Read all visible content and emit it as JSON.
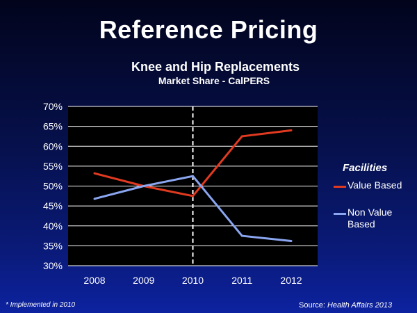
{
  "page": {
    "title": "Reference Pricing",
    "footnote": "* Implemented in 2010",
    "source_prefix": "Source: ",
    "source_name": "Health Affairs 2013"
  },
  "chart_data": {
    "type": "line",
    "title": "Knee and Hip Replacements",
    "subtitle": "Market Share - CalPERS",
    "categories": [
      "2008",
      "2009",
      "2010",
      "2011",
      "2012"
    ],
    "y_tick_labels": [
      "30%",
      "35%",
      "40%",
      "45%",
      "50%",
      "55%",
      "60%",
      "65%",
      "70%"
    ],
    "ylim": [
      30,
      70
    ],
    "y_step": 5,
    "grid": true,
    "annotation_x": "2010",
    "legend_title": "Facilities",
    "series": [
      {
        "name": "Value Based",
        "color": "#e03a20",
        "values": [
          53.2,
          50.0,
          47.5,
          62.5,
          64.0
        ]
      },
      {
        "name": "Non Value Based",
        "color": "#8aa6f0",
        "values": [
          46.8,
          50.0,
          52.5,
          37.5,
          36.2
        ]
      }
    ]
  }
}
